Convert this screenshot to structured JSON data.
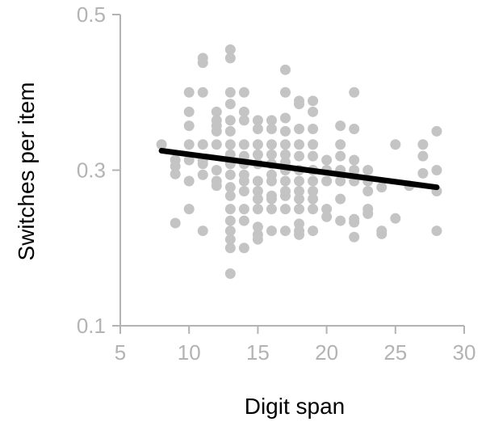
{
  "chart_data": {
    "type": "scatter",
    "title": "",
    "xlabel": "Digit span",
    "ylabel": "Switches per item",
    "xlim": [
      5,
      30
    ],
    "ylim": [
      0.1,
      0.5
    ],
    "xticks": [
      5,
      10,
      15,
      20,
      25,
      30
    ],
    "yticks": [
      0.1,
      0.3,
      0.5
    ],
    "xtick_labels": [
      "5",
      "10",
      "15",
      "20",
      "25",
      "30"
    ],
    "ytick_labels": [
      "0.1",
      "0.3",
      "0.5"
    ],
    "grid": false,
    "legend": "none",
    "point_color": "#c4c4c4",
    "line_color": "#000000",
    "axis_color": "#b3b3b3",
    "points": [
      {
        "x": 8,
        "y": 0.333
      },
      {
        "x": 9,
        "y": 0.313
      },
      {
        "x": 9,
        "y": 0.305
      },
      {
        "x": 9,
        "y": 0.295
      },
      {
        "x": 9,
        "y": 0.232
      },
      {
        "x": 10,
        "y": 0.4
      },
      {
        "x": 10,
        "y": 0.375
      },
      {
        "x": 10,
        "y": 0.357
      },
      {
        "x": 10,
        "y": 0.333
      },
      {
        "x": 10,
        "y": 0.313
      },
      {
        "x": 10,
        "y": 0.286
      },
      {
        "x": 10,
        "y": 0.25
      },
      {
        "x": 11,
        "y": 0.444
      },
      {
        "x": 11,
        "y": 0.438
      },
      {
        "x": 11,
        "y": 0.4
      },
      {
        "x": 11,
        "y": 0.333
      },
      {
        "x": 11,
        "y": 0.313
      },
      {
        "x": 11,
        "y": 0.308
      },
      {
        "x": 11,
        "y": 0.294
      },
      {
        "x": 11,
        "y": 0.222
      },
      {
        "x": 12,
        "y": 0.375
      },
      {
        "x": 12,
        "y": 0.364
      },
      {
        "x": 12,
        "y": 0.357
      },
      {
        "x": 12,
        "y": 0.35
      },
      {
        "x": 12,
        "y": 0.333
      },
      {
        "x": 12,
        "y": 0.3
      },
      {
        "x": 12,
        "y": 0.286
      },
      {
        "x": 12,
        "y": 0.28
      },
      {
        "x": 13,
        "y": 0.455
      },
      {
        "x": 13,
        "y": 0.444
      },
      {
        "x": 13,
        "y": 0.4
      },
      {
        "x": 13,
        "y": 0.385
      },
      {
        "x": 13,
        "y": 0.364
      },
      {
        "x": 13,
        "y": 0.35
      },
      {
        "x": 13,
        "y": 0.333
      },
      {
        "x": 13,
        "y": 0.32
      },
      {
        "x": 13,
        "y": 0.308
      },
      {
        "x": 13,
        "y": 0.294
      },
      {
        "x": 13,
        "y": 0.278
      },
      {
        "x": 13,
        "y": 0.267
      },
      {
        "x": 13,
        "y": 0.25
      },
      {
        "x": 13,
        "y": 0.235
      },
      {
        "x": 13,
        "y": 0.222
      },
      {
        "x": 13,
        "y": 0.211
      },
      {
        "x": 13,
        "y": 0.2
      },
      {
        "x": 13,
        "y": 0.167
      },
      {
        "x": 14,
        "y": 0.4
      },
      {
        "x": 14,
        "y": 0.375
      },
      {
        "x": 14,
        "y": 0.364
      },
      {
        "x": 14,
        "y": 0.333
      },
      {
        "x": 14,
        "y": 0.318
      },
      {
        "x": 14,
        "y": 0.308
      },
      {
        "x": 14,
        "y": 0.294
      },
      {
        "x": 14,
        "y": 0.286
      },
      {
        "x": 14,
        "y": 0.273
      },
      {
        "x": 14,
        "y": 0.25
      },
      {
        "x": 14,
        "y": 0.235
      },
      {
        "x": 14,
        "y": 0.2
      },
      {
        "x": 15,
        "y": 0.364
      },
      {
        "x": 15,
        "y": 0.353
      },
      {
        "x": 15,
        "y": 0.333
      },
      {
        "x": 15,
        "y": 0.32
      },
      {
        "x": 15,
        "y": 0.308
      },
      {
        "x": 15,
        "y": 0.286
      },
      {
        "x": 15,
        "y": 0.273
      },
      {
        "x": 15,
        "y": 0.263
      },
      {
        "x": 15,
        "y": 0.25
      },
      {
        "x": 15,
        "y": 0.227
      },
      {
        "x": 15,
        "y": 0.217
      },
      {
        "x": 15,
        "y": 0.211
      },
      {
        "x": 16,
        "y": 0.364
      },
      {
        "x": 16,
        "y": 0.353
      },
      {
        "x": 16,
        "y": 0.333
      },
      {
        "x": 16,
        "y": 0.32
      },
      {
        "x": 16,
        "y": 0.308
      },
      {
        "x": 16,
        "y": 0.294
      },
      {
        "x": 16,
        "y": 0.286
      },
      {
        "x": 16,
        "y": 0.267
      },
      {
        "x": 16,
        "y": 0.263
      },
      {
        "x": 16,
        "y": 0.25
      },
      {
        "x": 16,
        "y": 0.222
      },
      {
        "x": 17,
        "y": 0.429
      },
      {
        "x": 17,
        "y": 0.4
      },
      {
        "x": 17,
        "y": 0.367
      },
      {
        "x": 17,
        "y": 0.35
      },
      {
        "x": 17,
        "y": 0.333
      },
      {
        "x": 17,
        "y": 0.32
      },
      {
        "x": 17,
        "y": 0.31
      },
      {
        "x": 17,
        "y": 0.3
      },
      {
        "x": 17,
        "y": 0.286
      },
      {
        "x": 17,
        "y": 0.273
      },
      {
        "x": 17,
        "y": 0.267
      },
      {
        "x": 17,
        "y": 0.25
      },
      {
        "x": 17,
        "y": 0.222
      },
      {
        "x": 18,
        "y": 0.389
      },
      {
        "x": 18,
        "y": 0.385
      },
      {
        "x": 18,
        "y": 0.353
      },
      {
        "x": 18,
        "y": 0.333
      },
      {
        "x": 18,
        "y": 0.318
      },
      {
        "x": 18,
        "y": 0.3
      },
      {
        "x": 18,
        "y": 0.286
      },
      {
        "x": 18,
        "y": 0.273
      },
      {
        "x": 18,
        "y": 0.263
      },
      {
        "x": 18,
        "y": 0.25
      },
      {
        "x": 18,
        "y": 0.231
      },
      {
        "x": 18,
        "y": 0.222
      },
      {
        "x": 18,
        "y": 0.217
      },
      {
        "x": 19,
        "y": 0.389
      },
      {
        "x": 19,
        "y": 0.375
      },
      {
        "x": 19,
        "y": 0.353
      },
      {
        "x": 19,
        "y": 0.333
      },
      {
        "x": 19,
        "y": 0.318
      },
      {
        "x": 19,
        "y": 0.3
      },
      {
        "x": 19,
        "y": 0.286
      },
      {
        "x": 19,
        "y": 0.273
      },
      {
        "x": 19,
        "y": 0.263
      },
      {
        "x": 19,
        "y": 0.25
      },
      {
        "x": 19,
        "y": 0.222
      },
      {
        "x": 20,
        "y": 0.313
      },
      {
        "x": 20,
        "y": 0.3
      },
      {
        "x": 20,
        "y": 0.286
      },
      {
        "x": 20,
        "y": 0.25
      },
      {
        "x": 20,
        "y": 0.24
      },
      {
        "x": 21,
        "y": 0.357
      },
      {
        "x": 21,
        "y": 0.333
      },
      {
        "x": 21,
        "y": 0.318
      },
      {
        "x": 21,
        "y": 0.3
      },
      {
        "x": 21,
        "y": 0.286
      },
      {
        "x": 21,
        "y": 0.263
      },
      {
        "x": 21,
        "y": 0.235
      },
      {
        "x": 22,
        "y": 0.4
      },
      {
        "x": 22,
        "y": 0.353
      },
      {
        "x": 22,
        "y": 0.313
      },
      {
        "x": 22,
        "y": 0.3
      },
      {
        "x": 22,
        "y": 0.286
      },
      {
        "x": 22,
        "y": 0.237
      },
      {
        "x": 22,
        "y": 0.233
      },
      {
        "x": 22,
        "y": 0.214
      },
      {
        "x": 23,
        "y": 0.3
      },
      {
        "x": 23,
        "y": 0.286
      },
      {
        "x": 23,
        "y": 0.273
      },
      {
        "x": 23,
        "y": 0.25
      },
      {
        "x": 23,
        "y": 0.244
      },
      {
        "x": 24,
        "y": 0.278
      },
      {
        "x": 24,
        "y": 0.222
      },
      {
        "x": 24,
        "y": 0.218
      },
      {
        "x": 25,
        "y": 0.333
      },
      {
        "x": 25,
        "y": 0.238
      },
      {
        "x": 26,
        "y": 0.28
      },
      {
        "x": 27,
        "y": 0.333
      },
      {
        "x": 27,
        "y": 0.318
      },
      {
        "x": 27,
        "y": 0.296
      },
      {
        "x": 28,
        "y": 0.35
      },
      {
        "x": 28,
        "y": 0.3
      },
      {
        "x": 28,
        "y": 0.273
      },
      {
        "x": 28,
        "y": 0.222
      }
    ],
    "fit_line": {
      "x": [
        8,
        28
      ],
      "y": [
        0.325,
        0.278
      ]
    }
  }
}
